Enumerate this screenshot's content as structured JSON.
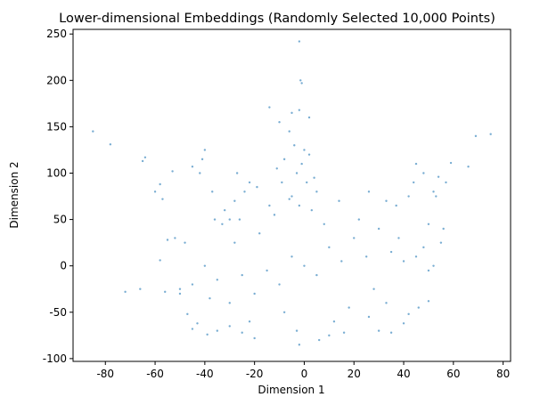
{
  "chart_data": {
    "type": "scatter",
    "title": "Lower-dimensional Embeddings (Randomly Selected 10,000 Points)",
    "xlabel": "Dimension 1",
    "ylabel": "Dimension 2",
    "xlim": [
      -93,
      83
    ],
    "ylim": [
      -103,
      255
    ],
    "xticks": [
      -80,
      -60,
      -40,
      -20,
      0,
      20,
      40,
      60,
      80
    ],
    "yticks": [
      -100,
      -50,
      0,
      50,
      100,
      150,
      200,
      250
    ],
    "grid": false,
    "marker_color": "#1f77b4",
    "marker_alpha": 0.6,
    "series": [
      {
        "points": [
          [
            0,
            0
          ],
          [
            -5,
            10
          ],
          [
            5,
            -10
          ],
          [
            10,
            20
          ],
          [
            -10,
            -20
          ],
          [
            15,
            5
          ],
          [
            -15,
            -5
          ],
          [
            20,
            30
          ],
          [
            -20,
            -30
          ],
          [
            25,
            10
          ],
          [
            -25,
            -10
          ],
          [
            30,
            40
          ],
          [
            -30,
            -40
          ],
          [
            35,
            15
          ],
          [
            -35,
            -15
          ],
          [
            8,
            45
          ],
          [
            -8,
            -50
          ],
          [
            12,
            -60
          ],
          [
            -12,
            55
          ],
          [
            18,
            -45
          ],
          [
            -18,
            35
          ],
          [
            28,
            -25
          ],
          [
            -28,
            25
          ],
          [
            40,
            5
          ],
          [
            -40,
            0
          ],
          [
            3,
            60
          ],
          [
            -3,
            -70
          ],
          [
            22,
            50
          ],
          [
            -22,
            -60
          ],
          [
            38,
            30
          ],
          [
            -38,
            -35
          ],
          [
            45,
            10
          ],
          [
            -45,
            -20
          ],
          [
            6,
            -80
          ],
          [
            -2,
            -85
          ],
          [
            14,
            70
          ],
          [
            -14,
            65
          ],
          [
            33,
            -40
          ],
          [
            -33,
            45
          ],
          [
            26,
            -55
          ],
          [
            -26,
            50
          ],
          [
            48,
            20
          ],
          [
            -48,
            25
          ],
          [
            50,
            -5
          ],
          [
            52,
            0
          ],
          [
            -50,
            -25
          ],
          [
            10,
            -75
          ],
          [
            16,
            -72
          ],
          [
            -6,
            72
          ],
          [
            -2,
            65
          ],
          [
            1,
            90
          ],
          [
            -3,
            100
          ],
          [
            -1,
            110
          ],
          [
            2,
            120
          ],
          [
            -4,
            130
          ],
          [
            0,
            125
          ],
          [
            -6,
            145
          ],
          [
            2,
            160
          ],
          [
            -10,
            155
          ],
          [
            -5,
            165
          ],
          [
            -2,
            168
          ],
          [
            -14,
            171
          ],
          [
            -1,
            197
          ],
          [
            -1.5,
            200
          ],
          [
            -2,
            242
          ],
          [
            -85,
            145
          ],
          [
            -78,
            131
          ],
          [
            -64,
            117
          ],
          [
            -65,
            113
          ],
          [
            -53,
            102
          ],
          [
            -58,
            88
          ],
          [
            -45,
            107
          ],
          [
            -40,
            125
          ],
          [
            -41,
            115
          ],
          [
            -60,
            80
          ],
          [
            -57,
            72
          ],
          [
            -42,
            100
          ],
          [
            -55,
            28
          ],
          [
            -52,
            30
          ],
          [
            -58,
            6
          ],
          [
            -66,
            -25
          ],
          [
            -72,
            -28
          ],
          [
            -56,
            -28
          ],
          [
            -50,
            -30
          ],
          [
            69,
            140
          ],
          [
            75,
            142
          ],
          [
            59,
            111
          ],
          [
            66,
            107
          ],
          [
            57,
            90
          ],
          [
            52,
            80
          ],
          [
            48,
            100
          ],
          [
            54,
            96
          ],
          [
            45,
            110
          ],
          [
            50,
            45
          ],
          [
            55,
            25
          ],
          [
            56,
            40
          ],
          [
            53,
            75
          ],
          [
            -47,
            -52
          ],
          [
            -43,
            -62
          ],
          [
            -45,
            -68
          ],
          [
            -39,
            -74
          ],
          [
            -35,
            -70
          ],
          [
            -30,
            -65
          ],
          [
            -25,
            -72
          ],
          [
            -20,
            -78
          ],
          [
            30,
            -70
          ],
          [
            35,
            -72
          ],
          [
            40,
            -62
          ],
          [
            50,
            -38
          ],
          [
            46,
            -45
          ],
          [
            42,
            -52
          ],
          [
            -36,
            50
          ],
          [
            -32,
            60
          ],
          [
            -28,
            70
          ],
          [
            -24,
            80
          ],
          [
            -22,
            90
          ],
          [
            -27,
            100
          ],
          [
            -19,
            85
          ],
          [
            -37,
            80
          ],
          [
            -30,
            50
          ],
          [
            33,
            70
          ],
          [
            37,
            65
          ],
          [
            42,
            75
          ],
          [
            44,
            90
          ],
          [
            26,
            80
          ],
          [
            -5,
            75
          ],
          [
            4,
            95
          ],
          [
            -11,
            105
          ],
          [
            -8,
            115
          ],
          [
            5,
            80
          ],
          [
            -9,
            90
          ]
        ]
      }
    ]
  }
}
